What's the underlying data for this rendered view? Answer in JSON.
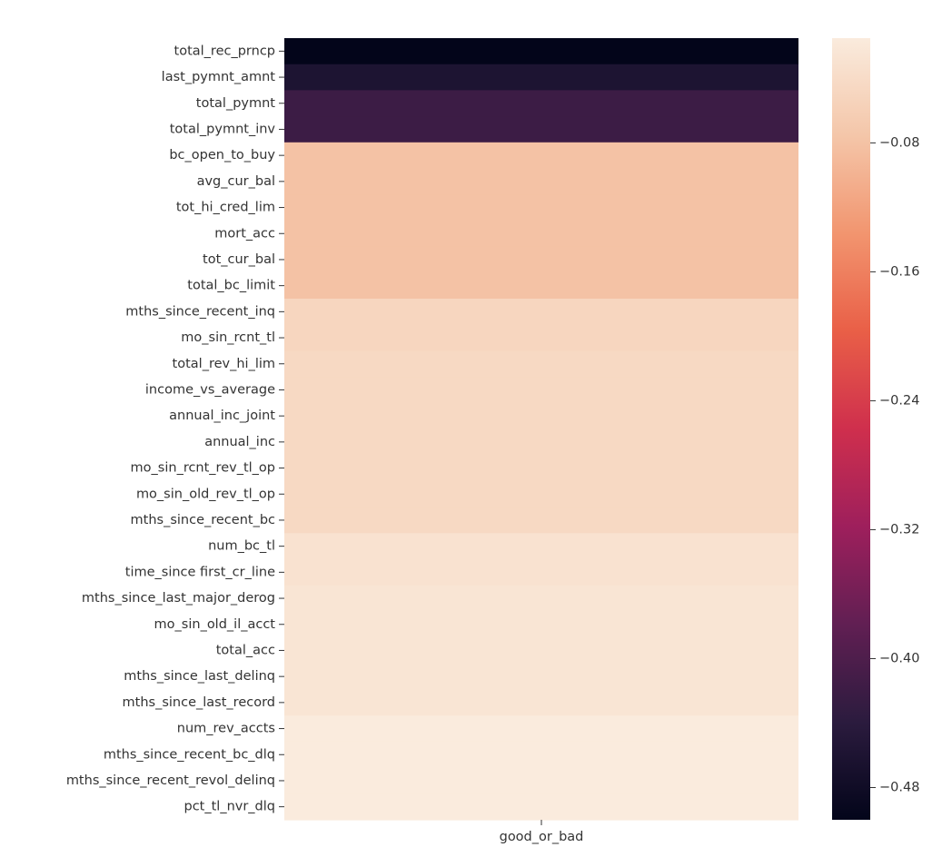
{
  "chart_data": {
    "type": "heatmap",
    "title": "",
    "xlabel": "",
    "ylabel": "",
    "x_categories": [
      "good_or_bad"
    ],
    "y_categories": [
      "total_rec_prncp",
      "last_pymnt_amnt",
      "total_pymnt",
      "total_pymnt_inv",
      "bc_open_to_buy",
      "avg_cur_bal",
      "tot_hi_cred_lim",
      "mort_acc",
      "tot_cur_bal",
      "total_bc_limit",
      "mths_since_recent_inq",
      "mo_sin_rcnt_tl",
      "total_rev_hi_lim",
      "income_vs_average",
      "annual_inc_joint",
      "annual_inc",
      "mo_sin_rcnt_rev_tl_op",
      "mo_sin_old_rev_tl_op",
      "mths_since_recent_bc",
      "num_bc_tl",
      "time_since first_cr_line",
      "mths_since_last_major_derog",
      "mo_sin_old_il_acct",
      "total_acc",
      "mths_since_last_delinq",
      "mths_since_last_record",
      "num_rev_accts",
      "mths_since_recent_bc_dlq",
      "mths_since_recent_revol_delinq",
      "pct_tl_nvr_dlq"
    ],
    "values": [
      -0.5,
      -0.46,
      -0.42,
      -0.42,
      -0.08,
      -0.08,
      -0.08,
      -0.08,
      -0.08,
      -0.08,
      -0.05,
      -0.05,
      -0.045,
      -0.045,
      -0.045,
      -0.045,
      -0.045,
      -0.045,
      -0.045,
      -0.03,
      -0.03,
      -0.025,
      -0.025,
      -0.025,
      -0.025,
      -0.025,
      -0.015,
      -0.015,
      -0.015,
      -0.015
    ],
    "colorbar": {
      "vmin": -0.5,
      "vmax": -0.015,
      "ticks": [
        -0.08,
        -0.16,
        -0.24,
        -0.32,
        -0.4,
        -0.48
      ],
      "tick_labels": [
        "−0.08",
        "−0.16",
        "−0.24",
        "−0.32",
        "−0.40",
        "−0.48"
      ]
    },
    "colormap": "rocket",
    "grid": false,
    "legend": "colorbar-right"
  }
}
